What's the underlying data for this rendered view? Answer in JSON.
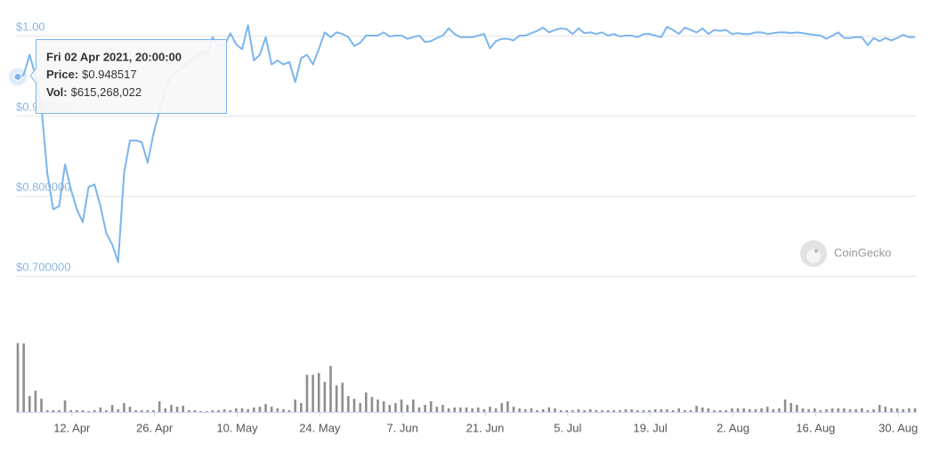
{
  "chart_data": {
    "type": "line",
    "watermark": "CoinGecko",
    "x": [
      "2021-04-02T20:00",
      "2021-04-03T20:00",
      "2021-04-04T20:00",
      "2021-04-05T20:00",
      "2021-04-06T20:00",
      "2021-04-07T20:00",
      "2021-04-08T20:00",
      "2021-04-09T20:00",
      "2021-04-10T20:00",
      "2021-04-11T20:00",
      "2021-04-12T20:00",
      "2021-04-13T20:00",
      "2021-04-14T20:00",
      "2021-04-15T20:00",
      "2021-04-16T20:00",
      "2021-04-17T20:00",
      "2021-04-18T20:00",
      "2021-04-19T20:00",
      "2021-04-20T20:00",
      "2021-04-21T20:00",
      "2021-04-22T20:00",
      "2021-04-23T20:00",
      "2021-04-24T20:00",
      "2021-04-25T20:00",
      "2021-04-26T20:00",
      "2021-04-27T20:00",
      "2021-04-28T20:00",
      "2021-04-29T20:00",
      "2021-04-30T20:00",
      "2021-05-01T20:00",
      "2021-05-02T20:00",
      "2021-05-03T20:00",
      "2021-05-04T20:00",
      "2021-05-05T20:00",
      "2021-05-06T20:00",
      "2021-05-07T20:00",
      "2021-05-08T20:00",
      "2021-05-09T20:00",
      "2021-05-10T20:00",
      "2021-05-11T20:00",
      "2021-05-12T20:00",
      "2021-05-13T20:00",
      "2021-05-14T20:00",
      "2021-05-15T20:00",
      "2021-05-16T20:00",
      "2021-05-17T20:00",
      "2021-05-18T20:00",
      "2021-05-19T20:00",
      "2021-05-20T20:00",
      "2021-05-21T20:00",
      "2021-05-22T20:00",
      "2021-05-23T20:00",
      "2021-05-24T20:00",
      "2021-05-25T20:00",
      "2021-05-26T20:00",
      "2021-05-27T20:00",
      "2021-05-28T20:00",
      "2021-05-29T20:00",
      "2021-05-30T20:00",
      "2021-05-31T20:00",
      "2021-06-01T20:00",
      "2021-06-02T20:00",
      "2021-06-03T20:00",
      "2021-06-04T20:00",
      "2021-06-05T20:00",
      "2021-06-06T20:00",
      "2021-06-07T20:00",
      "2021-06-08T20:00",
      "2021-06-09T20:00",
      "2021-06-10T20:00",
      "2021-06-11T20:00",
      "2021-06-12T20:00",
      "2021-06-13T20:00",
      "2021-06-14T20:00",
      "2021-06-15T20:00",
      "2021-06-16T20:00",
      "2021-06-17T20:00",
      "2021-06-18T20:00",
      "2021-06-19T20:00",
      "2021-06-20T20:00",
      "2021-06-21T20:00",
      "2021-06-22T20:00",
      "2021-06-23T20:00",
      "2021-06-24T20:00",
      "2021-06-25T20:00",
      "2021-06-26T20:00",
      "2021-06-27T20:00",
      "2021-06-28T20:00",
      "2021-06-29T20:00",
      "2021-06-30T20:00",
      "2021-07-01T20:00",
      "2021-07-02T20:00",
      "2021-07-03T20:00",
      "2021-07-04T20:00",
      "2021-07-05T20:00",
      "2021-07-06T20:00",
      "2021-07-07T20:00",
      "2021-07-08T20:00",
      "2021-07-09T20:00",
      "2021-07-10T20:00",
      "2021-07-11T20:00",
      "2021-07-12T20:00",
      "2021-07-13T20:00",
      "2021-07-14T20:00",
      "2021-07-15T20:00",
      "2021-07-16T20:00",
      "2021-07-17T20:00",
      "2021-07-18T20:00",
      "2021-07-19T20:00",
      "2021-07-20T20:00",
      "2021-07-21T20:00",
      "2021-07-22T20:00",
      "2021-07-23T20:00",
      "2021-07-24T20:00",
      "2021-07-25T20:00",
      "2021-07-26T20:00",
      "2021-07-27T20:00",
      "2021-07-28T20:00",
      "2021-07-29T20:00",
      "2021-07-30T20:00",
      "2021-07-31T20:00",
      "2021-08-01T20:00",
      "2021-08-02T20:00",
      "2021-08-03T20:00",
      "2021-08-04T20:00",
      "2021-08-05T20:00",
      "2021-08-06T20:00",
      "2021-08-07T20:00",
      "2021-08-08T20:00",
      "2021-08-09T20:00",
      "2021-08-10T20:00",
      "2021-08-11T20:00",
      "2021-08-12T20:00",
      "2021-08-13T20:00",
      "2021-08-14T20:00",
      "2021-08-15T20:00",
      "2021-08-16T20:00",
      "2021-08-17T20:00",
      "2021-08-18T20:00",
      "2021-08-19T20:00",
      "2021-08-20T20:00",
      "2021-08-21T20:00",
      "2021-08-22T20:00",
      "2021-08-23T20:00",
      "2021-08-24T20:00",
      "2021-08-25T20:00",
      "2021-08-26T20:00",
      "2021-08-27T20:00",
      "2021-08-28T20:00",
      "2021-08-29T20:00",
      "2021-08-30T20:00",
      "2021-08-31T20:00",
      "2021-09-01T20:00"
    ],
    "series": [
      {
        "color": "#7cb5ec",
        "axis": "y",
        "values": [
          0.948517,
          0.951,
          0.976,
          0.95,
          0.911,
          0.828,
          0.783,
          0.787,
          0.839,
          0.808,
          0.783,
          0.767,
          0.811,
          0.814,
          0.787,
          0.753,
          0.739,
          0.717,
          0.828,
          0.869,
          0.869,
          0.867,
          0.841,
          0.878,
          0.906,
          0.933,
          0.95,
          0.956,
          0.961,
          0.967,
          0.972,
          0.98,
          0.976,
          0.998,
          0.987,
          0.987,
          1.003,
          0.989,
          0.983,
          1.013,
          0.969,
          0.976,
          0.998,
          0.964,
          0.969,
          0.964,
          0.967,
          0.942,
          0.972,
          0.976,
          0.964,
          0.983,
          1.004,
          0.998,
          1.004,
          1.002,
          0.998,
          0.987,
          0.991,
          1.0,
          1.0,
          1.0,
          1.004,
          0.999,
          1.0,
          1.0,
          0.996,
          0.998,
          1.0,
          0.992,
          0.993,
          0.997,
          1.0,
          1.009,
          1.002,
          0.998,
          0.998,
          0.998,
          1.0,
          1.002,
          0.984,
          0.993,
          0.996,
          0.996,
          0.994,
          1.0,
          1.0,
          1.003,
          1.006,
          1.01,
          1.004,
          1.007,
          1.009,
          1.008,
          1.002,
          1.009,
          1.003,
          1.004,
          1.002,
          1.004,
          1.0,
          1.002,
          0.999,
          1.0,
          1.0,
          0.998,
          1.002,
          1.002,
          1.0,
          0.998,
          1.011,
          1.007,
          1.002,
          1.01,
          1.007,
          1.004,
          1.009,
          1.002,
          1.007,
          1.006,
          1.007,
          1.002,
          1.003,
          1.002,
          1.002,
          1.004,
          1.004,
          1.002,
          1.003,
          1.004,
          1.004,
          1.003,
          1.004,
          1.003,
          1.002,
          1.001,
          1.0,
          0.996,
          1.0,
          1.004,
          0.997,
          0.997,
          0.998,
          0.998,
          0.988,
          0.997,
          0.993,
          0.997,
          0.994,
          0.997,
          1.001,
          0.998,
          0.998
        ]
      },
      {
        "color": "#8e8e8e",
        "axis": "y2",
        "type": "bar",
        "values": [
          615268022,
          612000000,
          142000000,
          190000000,
          118000000,
          16000000,
          16000000,
          16000000,
          103000000,
          16000000,
          16000000,
          16000000,
          8000000,
          16000000,
          40000000,
          16000000,
          63000000,
          24000000,
          79000000,
          47000000,
          16000000,
          16000000,
          16000000,
          16000000,
          95000000,
          32000000,
          63000000,
          47000000,
          55000000,
          16000000,
          16000000,
          8000000,
          8000000,
          16000000,
          16000000,
          24000000,
          16000000,
          32000000,
          32000000,
          24000000,
          40000000,
          47000000,
          71000000,
          47000000,
          32000000,
          24000000,
          16000000,
          111000000,
          79000000,
          332000000,
          332000000,
          348000000,
          269000000,
          411000000,
          237000000,
          261000000,
          142000000,
          118000000,
          79000000,
          174000000,
          134000000,
          111000000,
          95000000,
          63000000,
          79000000,
          111000000,
          63000000,
          111000000,
          40000000,
          63000000,
          95000000,
          47000000,
          63000000,
          32000000,
          40000000,
          40000000,
          40000000,
          32000000,
          40000000,
          24000000,
          47000000,
          32000000,
          79000000,
          95000000,
          47000000,
          32000000,
          24000000,
          32000000,
          16000000,
          24000000,
          40000000,
          32000000,
          16000000,
          16000000,
          16000000,
          24000000,
          16000000,
          24000000,
          16000000,
          16000000,
          16000000,
          16000000,
          16000000,
          24000000,
          24000000,
          16000000,
          16000000,
          16000000,
          24000000,
          24000000,
          24000000,
          16000000,
          32000000,
          16000000,
          16000000,
          55000000,
          40000000,
          32000000,
          16000000,
          16000000,
          16000000,
          32000000,
          32000000,
          32000000,
          24000000,
          24000000,
          32000000,
          47000000,
          24000000,
          32000000,
          111000000,
          79000000,
          63000000,
          32000000,
          24000000,
          32000000,
          16000000,
          24000000,
          32000000,
          32000000,
          32000000,
          24000000,
          24000000,
          32000000,
          16000000,
          24000000,
          63000000,
          47000000,
          32000000,
          32000000,
          24000000,
          32000000,
          32000000
        ]
      }
    ],
    "xlim": [
      "2021-04-02T20:00",
      "2021-09-01T20:00"
    ],
    "xticks": [
      {
        "value": "2021-04-12T00:00",
        "label": "12. Apr"
      },
      {
        "value": "2021-04-26T00:00",
        "label": "26. Apr"
      },
      {
        "value": "2021-05-10T00:00",
        "label": "10. May"
      },
      {
        "value": "2021-05-24T00:00",
        "label": "24. May"
      },
      {
        "value": "2021-06-07T00:00",
        "label": "7. Jun"
      },
      {
        "value": "2021-06-21T00:00",
        "label": "21. Jun"
      },
      {
        "value": "2021-07-05T00:00",
        "label": "5. Jul"
      },
      {
        "value": "2021-07-19T00:00",
        "label": "19. Jul"
      },
      {
        "value": "2021-08-02T00:00",
        "label": "2. Aug"
      },
      {
        "value": "2021-08-16T00:00",
        "label": "16. Aug"
      },
      {
        "value": "2021-08-30T00:00",
        "label": "30. Aug"
      }
    ],
    "ylim": [
      0.7,
      1.03
    ],
    "yticks": [
      {
        "value": 1,
        "label": "$1.00"
      },
      {
        "value": 0.9,
        "label": "$0.900000"
      },
      {
        "value": 0.8,
        "label": "$0.800000"
      },
      {
        "value": 0.7,
        "label": "$0.700000"
      }
    ],
    "y2lim": [
      0,
      620000000
    ],
    "grid": true,
    "tooltip": {
      "title": "Fri 02 Apr 2021, 20:00:00",
      "rows": [
        {
          "label": "Price:",
          "value": "$0.948517"
        },
        {
          "label": "Vol:",
          "value": "$615,268,022"
        }
      ]
    }
  }
}
